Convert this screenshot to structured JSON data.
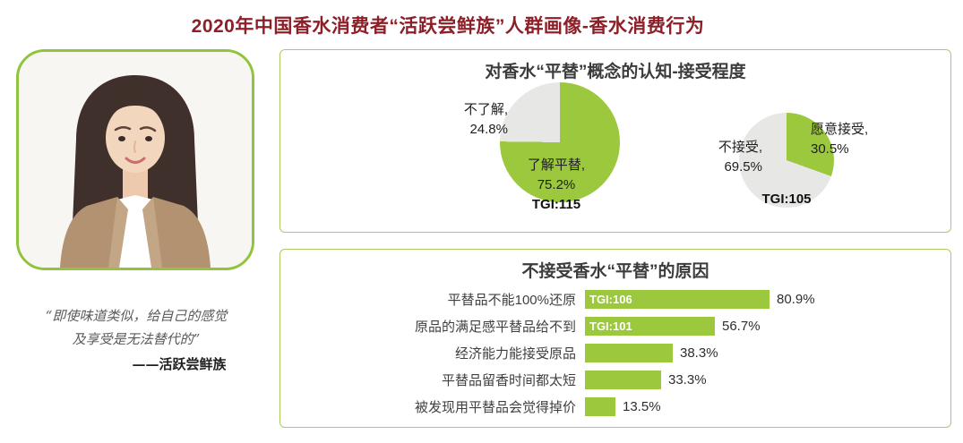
{
  "page": {
    "title": "2020年中国香水消费者“活跃尝鲜族”人群画像-香水消费行为"
  },
  "persona": {
    "photo_alt": "活跃尝鲜族女性形象照片",
    "quote_line1": "“即使味道类似，给自己的感觉",
    "quote_line2": "及享受是无法替代的”",
    "attribution": "——活跃尝鲜族"
  },
  "awareness_panel": {
    "title": "对香水“平替”概念的认知-接受程度",
    "pie1": {
      "unaware_label": "不了解,",
      "unaware_value": "24.8%",
      "aware_label": "了解平替,",
      "aware_value": "75.2%",
      "tgi": "TGI:115"
    },
    "pie2": {
      "accept_label": "愿意接受,",
      "accept_value": "30.5%",
      "reject_label": "不接受,",
      "reject_value": "69.5%",
      "tgi": "TGI:105"
    }
  },
  "reasons_panel": {
    "title": "不接受香水“平替”的原因"
  },
  "colors": {
    "accent_green": "#9bc83d",
    "pie_gray": "#e7e7e5",
    "title_maroon": "#8c1f28"
  },
  "chart_data": [
    {
      "type": "pie",
      "title": "对香水“平替”概念的认知",
      "slices": [
        {
          "label": "了解平替",
          "value": 75.2,
          "color": "#9bc83d"
        },
        {
          "label": "不了解",
          "value": 24.8,
          "color": "#e7e7e5"
        }
      ],
      "annotation": "TGI:115"
    },
    {
      "type": "pie",
      "title": "对香水“平替”的接受程度",
      "slices": [
        {
          "label": "愿意接受",
          "value": 30.5,
          "color": "#9bc83d"
        },
        {
          "label": "不接受",
          "value": 69.5,
          "color": "#e7e7e5"
        }
      ],
      "annotation": "TGI:105"
    },
    {
      "type": "bar",
      "orientation": "horizontal",
      "title": "不接受香水“平替”的原因",
      "categories": [
        "平替品不能100%还原",
        "原品的满足感平替品给不到",
        "经济能力能接受原品",
        "平替品留香时间都太短",
        "被发现用平替品会觉得掉价"
      ],
      "values": [
        80.9,
        56.7,
        38.3,
        33.3,
        13.5
      ],
      "value_labels": [
        "80.9%",
        "56.7%",
        "38.3%",
        "33.3%",
        "13.5%"
      ],
      "bar_annotations": [
        "TGI:106",
        "TGI:101",
        "",
        "",
        ""
      ],
      "xlim": [
        0,
        100
      ],
      "color": "#9bc83d"
    }
  ]
}
